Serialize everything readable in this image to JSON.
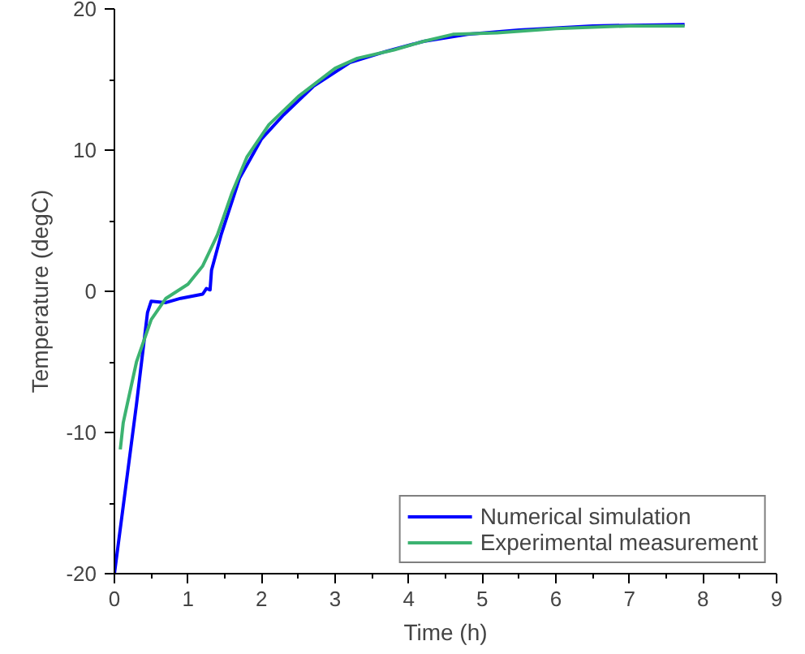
{
  "chart_data": {
    "type": "line",
    "xlabel": "Time (h)",
    "ylabel": "Temperature (degC)",
    "xlim": [
      0,
      9
    ],
    "ylim": [
      -20,
      20
    ],
    "xticks": [
      0,
      1,
      2,
      3,
      4,
      5,
      6,
      7,
      8,
      9
    ],
    "yticks": [
      -20,
      -10,
      0,
      10,
      20
    ],
    "grid": false,
    "legend": "bottom right",
    "line_style": "solid",
    "marker": "none",
    "series": [
      {
        "name": "Numerical simulation",
        "color": "#0000ff",
        "x": [
          0,
          0.1,
          0.3,
          0.45,
          0.5,
          0.7,
          0.9,
          1.2,
          1.25,
          1.3,
          1.32,
          1.45,
          1.7,
          2.0,
          2.3,
          2.7,
          3.2,
          3.7,
          4.2,
          4.8,
          5.5,
          6.5,
          7.75
        ],
        "values": [
          -20,
          -16,
          -8,
          -1.5,
          -0.7,
          -0.8,
          -0.5,
          -0.2,
          0.2,
          0.1,
          1.5,
          4,
          8,
          10.8,
          12.5,
          14.5,
          16.2,
          17,
          17.7,
          18.2,
          18.5,
          18.8,
          18.9
        ]
      },
      {
        "name": "Experimental measurement",
        "color": "#3cb371",
        "x": [
          0.08,
          0.12,
          0.3,
          0.5,
          0.7,
          1.0,
          1.2,
          1.4,
          1.6,
          1.8,
          2.1,
          2.5,
          3.0,
          3.3,
          3.8,
          4.2,
          4.6,
          5.2,
          6.0,
          7.0,
          7.75
        ],
        "values": [
          -11.2,
          -9.3,
          -5,
          -2,
          -0.5,
          0.5,
          1.8,
          4,
          7,
          9.5,
          11.8,
          13.8,
          15.8,
          16.5,
          17.1,
          17.7,
          18.2,
          18.3,
          18.6,
          18.8,
          18.8
        ]
      }
    ]
  }
}
